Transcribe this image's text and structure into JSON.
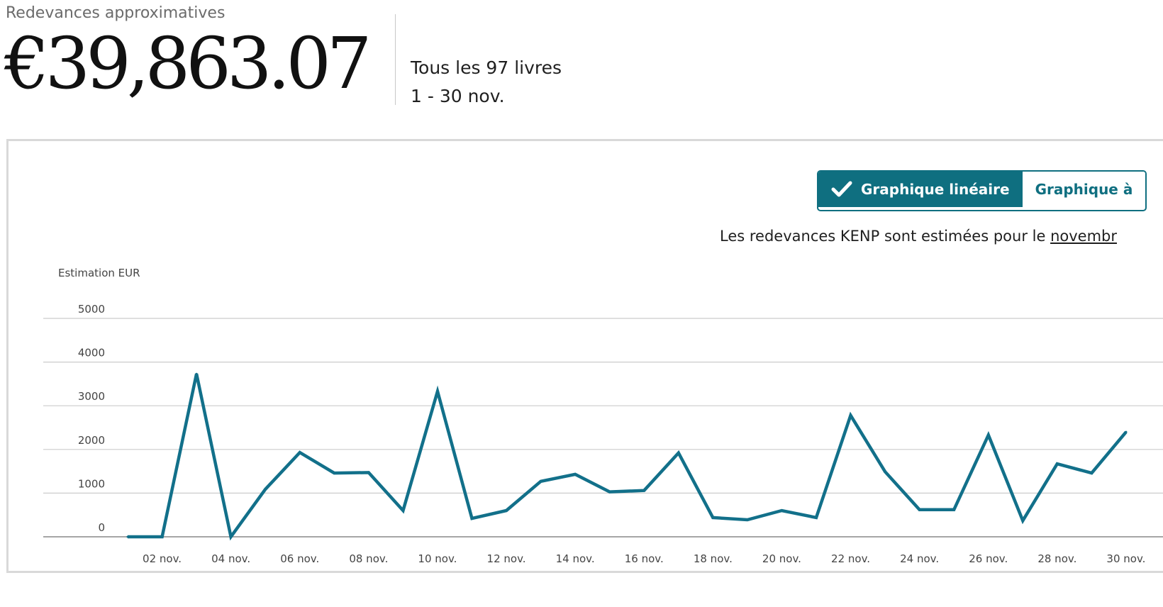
{
  "summary": {
    "label": "Redevances approximatives",
    "total": "€39,863.07",
    "scope": "Tous les 97 livres",
    "period": "1 - 30 nov."
  },
  "controls": {
    "line_chart_label": "Graphique linéaire",
    "bar_chart_label": "Graphique à",
    "check_icon": "check-icon"
  },
  "note": {
    "text": "Les redevances KENP sont estimées pour le ",
    "link": "novembr"
  },
  "colors": {
    "accent": "#0f6f80",
    "line": "#12708a",
    "grid": "#cccccc",
    "axis": "#888888",
    "tick_text": "#444444"
  },
  "chart_data": {
    "type": "line",
    "ylabel": "Estimation EUR",
    "xlabel": "",
    "title": "",
    "ylim": [
      0,
      5000
    ],
    "yticks": [
      0,
      1000,
      2000,
      3000,
      4000,
      5000
    ],
    "grid": true,
    "x_tick_labels": [
      "02 nov.",
      "04 nov.",
      "06 nov.",
      "08 nov.",
      "10 nov.",
      "12 nov.",
      "14 nov.",
      "16 nov.",
      "18 nov.",
      "20 nov.",
      "22 nov.",
      "24 nov.",
      "26 nov.",
      "28 nov.",
      "30 nov."
    ],
    "x": [
      1,
      2,
      3,
      4,
      5,
      6,
      7,
      8,
      9,
      10,
      11,
      12,
      13,
      14,
      15,
      16,
      17,
      18,
      19,
      20,
      21,
      22,
      23,
      24,
      25,
      26,
      27,
      28,
      29,
      30
    ],
    "series": [
      {
        "values": [
          0,
          0,
          3730,
          0,
          1090,
          1930,
          1460,
          1470,
          600,
          3330,
          420,
          600,
          1270,
          1430,
          1030,
          1060,
          1920,
          440,
          390,
          600,
          440,
          2780,
          1490,
          620,
          620,
          2330,
          370,
          1670,
          1460,
          2400
        ]
      }
    ]
  }
}
